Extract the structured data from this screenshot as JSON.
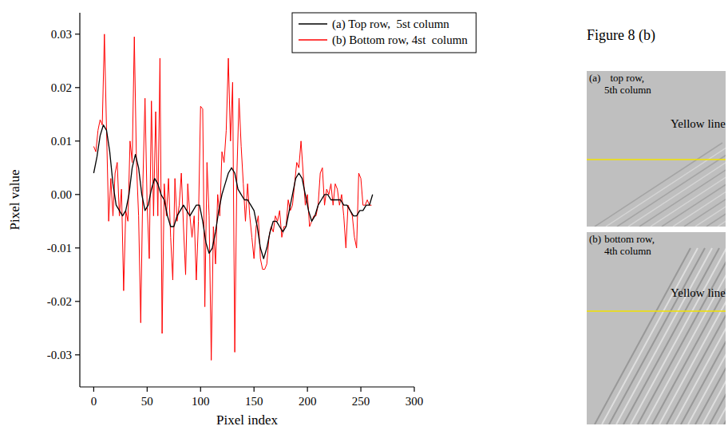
{
  "chart_data": {
    "type": "line",
    "title": "Figure 8 (b)",
    "xlabel": "Pixel index",
    "ylabel": "Pixel value",
    "xlim": [
      -13,
      300
    ],
    "xticks": [
      0,
      50,
      100,
      150,
      200,
      250,
      300
    ],
    "ylim": [
      -0.036,
      0.034
    ],
    "yticks": [
      -0.03,
      -0.02,
      -0.01,
      {
        "value": 0,
        "label": "0.00"
      },
      0.01,
      0.02,
      0.03
    ],
    "legend": "top",
    "grid": false,
    "series": [
      {
        "name": "(a) Top row,  5st column",
        "color": "#000000",
        "x": [
          0,
          3,
          6,
          9,
          12,
          15,
          18,
          21,
          24,
          27,
          30,
          33,
          36,
          39,
          42,
          45,
          48,
          51,
          54,
          57,
          60,
          63,
          66,
          69,
          72,
          75,
          78,
          81,
          84,
          87,
          90,
          93,
          96,
          99,
          102,
          105,
          108,
          111,
          114,
          117,
          120,
          123,
          126,
          129,
          132,
          135,
          138,
          141,
          144,
          147,
          150,
          153,
          156,
          159,
          162,
          165,
          168,
          171,
          174,
          177,
          180,
          183,
          186,
          189,
          192,
          195,
          198,
          201,
          204,
          207,
          210,
          213,
          216,
          219,
          222,
          225,
          228,
          231,
          234,
          237,
          240,
          243,
          246,
          249,
          252,
          255,
          258,
          261
        ],
        "values": [
          0.004,
          0.007,
          0.011,
          0.013,
          0.012,
          0.008,
          0.002,
          -0.002,
          -0.003,
          -0.004,
          -0.003,
          0.0,
          0.005,
          0.0075,
          0.005,
          0.0,
          -0.003,
          -0.002,
          0.001,
          0.003,
          0.002,
          0.0,
          -0.001,
          -0.004,
          -0.006,
          -0.006,
          -0.004,
          -0.003,
          -0.002,
          -0.003,
          -0.004,
          -0.003,
          -0.002,
          -0.002,
          -0.005,
          -0.009,
          -0.011,
          -0.01,
          -0.007,
          -0.003,
          0.0,
          0.002,
          0.004,
          0.005,
          0.004,
          0.001,
          0.0,
          -0.001,
          -0.001,
          -0.002,
          -0.003,
          -0.006,
          -0.01,
          -0.012,
          -0.01,
          -0.007,
          -0.005,
          -0.005,
          -0.006,
          -0.007,
          -0.006,
          -0.003,
          0.0,
          0.003,
          0.004,
          0.003,
          0.0,
          -0.003,
          -0.005,
          -0.004,
          -0.002,
          -0.001,
          0.0,
          0.0,
          -0.001,
          -0.001,
          -0.001,
          -0.001,
          -0.002,
          -0.002,
          -0.003,
          -0.004,
          -0.004,
          -0.003,
          -0.003,
          -0.002,
          -0.002,
          0.0
        ]
      },
      {
        "name": "(b) Bottom row, 4st  column",
        "color": "#ff0000",
        "x": [
          0,
          2,
          4,
          6,
          8,
          10,
          12,
          14,
          16,
          18,
          20,
          22,
          24,
          26,
          28,
          30,
          32,
          34,
          36,
          38,
          40,
          42,
          44,
          46,
          48,
          50,
          52,
          54,
          56,
          58,
          60,
          62,
          64,
          66,
          68,
          70,
          72,
          74,
          76,
          78,
          80,
          82,
          84,
          86,
          88,
          90,
          92,
          94,
          96,
          98,
          100,
          102,
          104,
          106,
          108,
          110,
          112,
          114,
          116,
          118,
          120,
          122,
          124,
          126,
          128,
          130,
          132,
          134,
          136,
          138,
          140,
          142,
          144,
          146,
          148,
          150,
          152,
          154,
          156,
          158,
          160,
          162,
          164,
          166,
          168,
          170,
          172,
          174,
          176,
          178,
          180,
          182,
          184,
          186,
          188,
          190,
          192,
          194,
          196,
          198,
          200,
          202,
          204,
          206,
          208,
          210,
          212,
          214,
          216,
          218,
          220,
          222,
          224,
          226,
          228,
          230,
          232,
          234,
          236,
          238,
          240,
          242,
          244,
          246,
          248,
          250,
          252,
          254,
          256,
          258,
          260
        ],
        "values": [
          0.009,
          0.008,
          0.012,
          0.014,
          0.013,
          0.03,
          0.012,
          -0.005,
          0.003,
          -0.004,
          0.004,
          0.006,
          -0.004,
          0.001,
          -0.018,
          -0.003,
          -0.005,
          0.01,
          0.006,
          0.0295,
          0.006,
          -0.004,
          -0.024,
          0.002,
          0.018,
          -0.002,
          -0.012,
          0.0175,
          -0.004,
          0.0155,
          -0.004,
          0.0255,
          -0.026,
          0.002,
          -0.004,
          0.003,
          -0.008,
          -0.016,
          0.003,
          -0.005,
          -0.002,
          0.004,
          -0.006,
          -0.015,
          0.002,
          -0.004,
          -0.008,
          -0.004,
          -0.016,
          -0.005,
          0.0165,
          0.016,
          -0.021,
          0.006,
          -0.004,
          -0.031,
          -0.006,
          -0.013,
          0.0,
          -0.004,
          0.008,
          0.006,
          0.012,
          0.0255,
          0.01,
          0.021,
          -0.0295,
          0.004,
          0.018,
          0.009,
          0.002,
          -0.005,
          0.002,
          -0.004,
          -0.008,
          -0.012,
          -0.006,
          -0.004,
          -0.012,
          -0.014,
          -0.014,
          -0.013,
          -0.008,
          -0.006,
          -0.007,
          -0.004,
          -0.005,
          -0.003,
          -0.008,
          -0.006,
          -0.006,
          -0.001,
          -0.003,
          -0.002,
          0.002,
          0.006,
          0.005,
          0.01,
          0.004,
          -0.002,
          0.0,
          -0.006,
          -0.005,
          -0.004,
          -0.004,
          -0.002,
          0.004,
          0.005,
          -0.002,
          0.001,
          0.0,
          0.002,
          -0.002,
          0.002,
          0.001,
          -0.002,
          0.0,
          -0.004,
          -0.01,
          -0.002,
          -0.003,
          -0.004,
          -0.008,
          -0.01,
          0.004,
          0.003,
          -0.002,
          -0.002,
          -0.001,
          -0.002,
          -0.002
        ]
      }
    ]
  },
  "images": [
    {
      "letter": "(a)",
      "caption": [
        "top row,",
        "5th column"
      ],
      "line_label": "Yellow line"
    },
    {
      "letter": "(b)",
      "caption": [
        "bottom row,",
        "4th column"
      ],
      "line_label": "Yellow line"
    }
  ]
}
